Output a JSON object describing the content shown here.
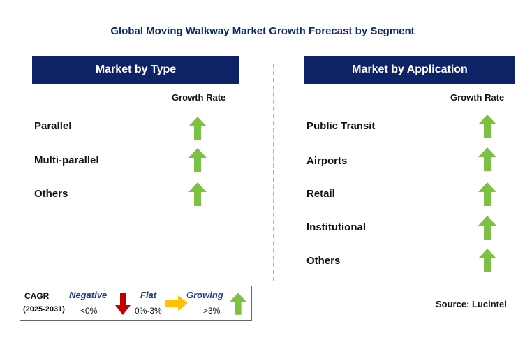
{
  "title": "Global Moving Walkway Market Growth Forecast by Segment",
  "left_panel": {
    "header": "Market by Type",
    "growth_label": "Growth Rate",
    "items": [
      {
        "label": "Parallel",
        "trend": "growing"
      },
      {
        "label": "Multi-parallel",
        "trend": "growing"
      },
      {
        "label": "Others",
        "trend": "growing"
      }
    ]
  },
  "right_panel": {
    "header": "Market by Application",
    "growth_label": "Growth Rate",
    "items": [
      {
        "label": "Public Transit",
        "trend": "growing"
      },
      {
        "label": "Airports",
        "trend": "growing"
      },
      {
        "label": "Retail",
        "trend": "growing"
      },
      {
        "label": "Institutional",
        "trend": "growing"
      },
      {
        "label": "Others",
        "trend": "growing"
      }
    ]
  },
  "legend": {
    "cagr": "CAGR",
    "period": "(2025-2031)",
    "negative": {
      "label": "Negative",
      "range": "<0%"
    },
    "flat": {
      "label": "Flat",
      "range": "0%-3%"
    },
    "growing": {
      "label": "Growing",
      "range": ">3%"
    }
  },
  "source": "Source: Lucintel",
  "colors": {
    "header_bg": "#0d2366",
    "title": "#0d2a6b",
    "growing": "#7dc142",
    "negative": "#c00000",
    "flat": "#ffc000",
    "divider": "#f5b400"
  }
}
